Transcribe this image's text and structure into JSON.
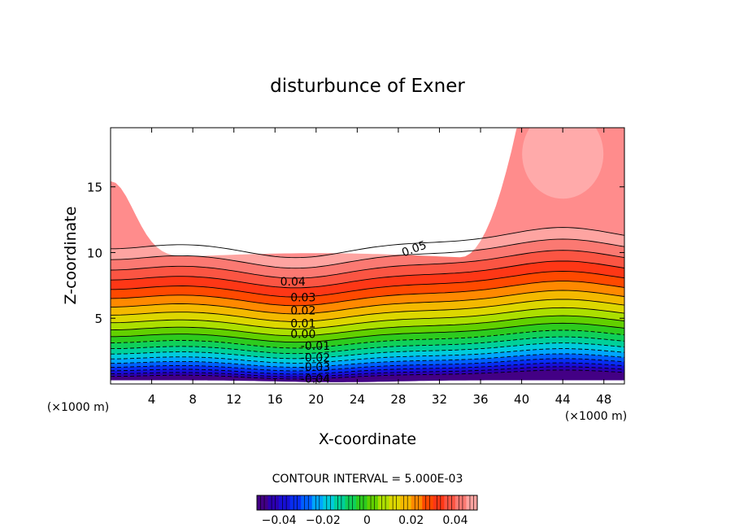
{
  "chart_data": {
    "type": "contour",
    "title": "disturbunce of Exner",
    "xlabel": "X-coordinate",
    "ylabel": "Z-coordinate",
    "x_unit": "(×1000 m)",
    "y_unit": "(×1000 m)",
    "xlim": [
      0,
      50
    ],
    "ylim": [
      0,
      19.5
    ],
    "xticks": [
      4,
      8,
      12,
      16,
      20,
      24,
      28,
      32,
      36,
      40,
      44,
      48
    ],
    "yticks": [
      5,
      10,
      15
    ],
    "contour_interval_text": "CONTOUR INTERVAL = 5.000E-03",
    "contour_interval": 0.005,
    "levels": {
      "min": -0.045,
      "max": 0.05,
      "step": 0.005,
      "negative_style": "dashed",
      "positive_style": "solid"
    },
    "contour_labels": [
      {
        "text": "0.05",
        "value": 0.05,
        "x": 28.5,
        "z": 10.0
      },
      {
        "text": "0.04",
        "value": 0.04,
        "x": 16.5,
        "z": 7.8
      },
      {
        "text": "0.03",
        "value": 0.03,
        "x": 17.5,
        "z": 6.6
      },
      {
        "text": "0.02",
        "value": 0.02,
        "x": 17.5,
        "z": 5.6
      },
      {
        "text": "0.01",
        "value": 0.01,
        "x": 17.5,
        "z": 4.6
      },
      {
        "text": "0.00",
        "value": 0.0,
        "x": 17.5,
        "z": 3.8
      },
      {
        "text": "-0.01",
        "value": -0.01,
        "x": 18.5,
        "z": 2.9
      },
      {
        "text": "-0.02",
        "value": -0.02,
        "x": 18.5,
        "z": 2.0
      },
      {
        "text": "-0.03",
        "value": -0.03,
        "x": 18.5,
        "z": 1.3
      },
      {
        "text": "-0.04",
        "value": -0.04,
        "x": 18.5,
        "z": 0.4
      }
    ],
    "colorbar": {
      "ticks": [
        -0.04,
        -0.02,
        0,
        0.02,
        0.04
      ],
      "tick_labels": [
        "-0.04",
        "-0.02",
        "0",
        "0.02",
        "0.04"
      ],
      "range": [
        -0.05,
        0.05
      ]
    }
  }
}
